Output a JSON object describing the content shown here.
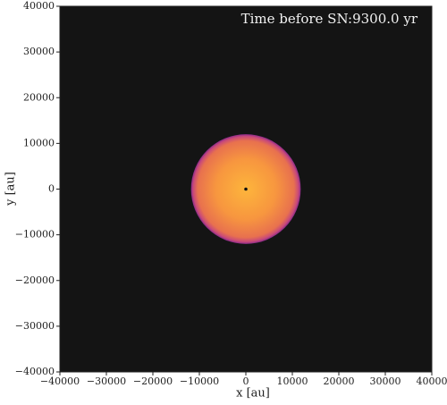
{
  "chart_data": {
    "type": "disk",
    "annotation": "Time before SN:9300.0 yr",
    "xlabel": "x [au]",
    "ylabel": "y [au]",
    "xlim": [
      -40000,
      40000
    ],
    "ylim": [
      -40000,
      40000
    ],
    "xticks": [
      {
        "value": -40000,
        "label": "−40000"
      },
      {
        "value": -30000,
        "label": "−30000"
      },
      {
        "value": -20000,
        "label": "−20000"
      },
      {
        "value": -10000,
        "label": "−10000"
      },
      0,
      10000,
      20000,
      30000,
      40000
    ],
    "yticks": [
      {
        "value": -40000,
        "label": "−40000"
      },
      {
        "value": -30000,
        "label": "−30000"
      },
      {
        "value": -20000,
        "label": "−20000"
      },
      {
        "value": -10000,
        "label": "−10000"
      },
      0,
      10000,
      20000,
      30000,
      40000
    ],
    "disk": {
      "center_x": 0,
      "center_y": 0,
      "radius": 11800
    },
    "background": "#141414"
  }
}
